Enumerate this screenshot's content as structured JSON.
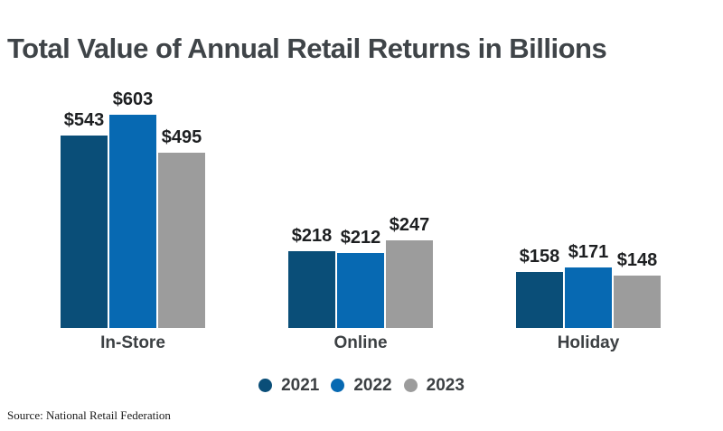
{
  "title": "Total Value of Annual Retail Returns in Billions",
  "source": "Source: National Retail Federation",
  "colors": {
    "title_text": "#3F4448",
    "category_text": "#3C4043",
    "value_text": "#1D1F21",
    "series_2021": "#0A4E78",
    "series_2022": "#0769B2",
    "series_2023": "#9C9C9C",
    "background": "#FFFFFF"
  },
  "chart_data": {
    "type": "bar",
    "categories": [
      "In-Store",
      "Online",
      "Holiday"
    ],
    "series": [
      {
        "name": "2021",
        "color": "#0A4E78",
        "values": [
          543,
          218,
          158
        ],
        "labels": [
          "$543",
          "$218",
          "$158"
        ]
      },
      {
        "name": "2022",
        "color": "#0769B2",
        "values": [
          603,
          212,
          171
        ],
        "labels": [
          "$603",
          "$212",
          "$171"
        ]
      },
      {
        "name": "2023",
        "color": "#9C9C9C",
        "values": [
          495,
          247,
          148
        ],
        "labels": [
          "$495",
          "$247",
          "$148"
        ]
      }
    ],
    "value_prefix": "$",
    "title": "Total Value of Annual Retail Returns in Billions",
    "xlabel": "",
    "ylabel": "",
    "ylim": [
      0,
      603
    ],
    "grid": false,
    "legend_position": "bottom",
    "value_labels_shown": true,
    "axis_lines_shown": false
  }
}
